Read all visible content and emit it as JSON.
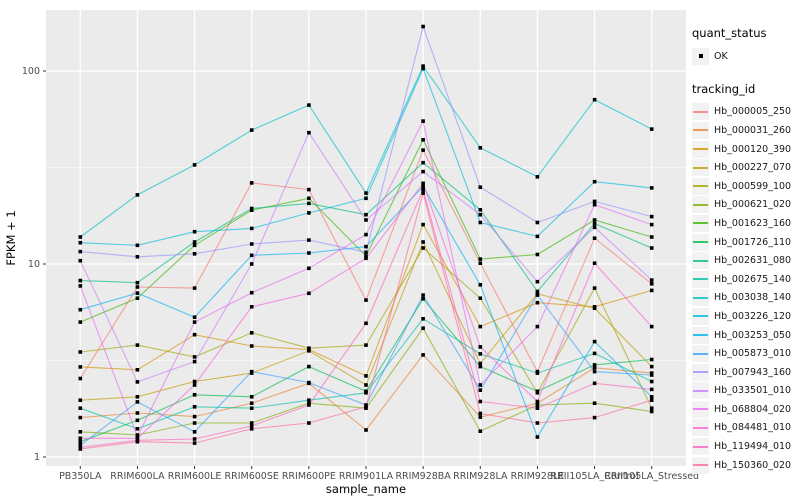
{
  "chart": {
    "ylabel": "FPKM + 1",
    "xlabel": "sample_name",
    "legend": {
      "quant_status_title": "quant_status",
      "quant_status_ok_label": "OK",
      "tracking_title": "tracking_id"
    }
  },
  "chart_data": {
    "type": "line",
    "title": "",
    "xlabel": "sample_name",
    "ylabel": "FPKM + 1",
    "y_scale": "log10",
    "y_ticks": [
      1,
      10,
      100
    ],
    "y_minor_gridlines": [
      3.162,
      31.623
    ],
    "ylim": [
      0.9,
      210
    ],
    "grid": true,
    "legend_position": "right",
    "point_marker": {
      "shape": "small-black-square",
      "color": "#000000",
      "quant_status": "OK"
    },
    "categories": [
      "PB350LA",
      "RRIM600LA",
      "RRIM600LE",
      "RRIM600SE",
      "RRIM600PE",
      "RRIM901LA",
      "RRIM928BA",
      "RRIM928LA",
      "RRIM928LE",
      "RRII105LA_Control",
      "RRII105LA_Stressed"
    ],
    "series": [
      {
        "name": "Hb_000005_250",
        "color": "#F8766D",
        "values": [
          2.55,
          7.6,
          7.5,
          26.3,
          24.3,
          6.5,
          38.9,
          10.1,
          2.77,
          13.6,
          7.9
        ]
      },
      {
        "name": "Hb_000031_260",
        "color": "#EA8331",
        "values": [
          1.6,
          1.69,
          1.62,
          1.9,
          2.41,
          1.38,
          3.38,
          1.61,
          1.9,
          2.9,
          2.72
        ]
      },
      {
        "name": "Hb_000120_390",
        "color": "#D89000",
        "values": [
          2.93,
          2.83,
          4.3,
          3.76,
          3.6,
          2.63,
          16,
          4.74,
          6.3,
          6.0,
          7.3
        ]
      },
      {
        "name": "Hb_000227_070",
        "color": "#C09B00",
        "values": [
          1.97,
          2.05,
          2.46,
          2.72,
          3.55,
          2.36,
          13,
          3.05,
          7.0,
          5.9,
          2.94
        ]
      },
      {
        "name": "Hb_000599_100",
        "color": "#A3A500",
        "values": [
          3.5,
          3.8,
          3.3,
          4.4,
          3.66,
          3.8,
          12.1,
          6.65,
          2.15,
          7.5,
          1.79
        ]
      },
      {
        "name": "Hb_000621_020",
        "color": "#7CAE00",
        "values": [
          1.35,
          1.3,
          1.5,
          1.5,
          1.9,
          1.79,
          4.65,
          1.36,
          1.86,
          1.9,
          1.72
        ]
      },
      {
        "name": "Hb_001623_160",
        "color": "#39B600",
        "values": [
          5.0,
          6.65,
          12.5,
          19.0,
          21.9,
          11.0,
          44,
          10.6,
          11.2,
          16.9,
          13.8
        ]
      },
      {
        "name": "Hb_001726_110",
        "color": "#00BB4E",
        "values": [
          1.2,
          1.55,
          2.1,
          2.05,
          2.94,
          2.19,
          6.6,
          2.94,
          2.19,
          3.0,
          3.2
        ]
      },
      {
        "name": "Hb_002631_080",
        "color": "#00BF7D",
        "values": [
          8.2,
          8.0,
          13.0,
          19.4,
          20.6,
          18.0,
          33.5,
          19.1,
          7.2,
          16.2,
          12.1
        ]
      },
      {
        "name": "Hb_002675_140",
        "color": "#00C1A3",
        "values": [
          1.79,
          1.4,
          1.82,
          1.79,
          1.97,
          2.15,
          5.2,
          3.42,
          2.72,
          3.44,
          2.46
        ]
      },
      {
        "name": "Hb_003038_140",
        "color": "#00BFC4",
        "values": [
          13.8,
          22.8,
          32.6,
          49.4,
          66.6,
          23.3,
          106,
          40,
          28.3,
          71,
          50
        ]
      },
      {
        "name": "Hb_003226_120",
        "color": "#00BAE0",
        "values": [
          12.9,
          12.5,
          14.7,
          15.3,
          18.4,
          21.9,
          103,
          16.4,
          13.9,
          26.7,
          24.8
        ]
      },
      {
        "name": "Hb_003253_050",
        "color": "#00B0F6",
        "values": [
          5.8,
          7.07,
          5.3,
          11.1,
          11.4,
          12.3,
          25.2,
          7.8,
          1.27,
          3.96,
          2.05
        ]
      },
      {
        "name": "Hb_005873_010",
        "color": "#35A2FF",
        "values": [
          1.15,
          1.93,
          1.35,
          2.77,
          2.43,
          1.86,
          6.9,
          2.22,
          6.9,
          2.77,
          2.66
        ]
      },
      {
        "name": "Hb_007943_160",
        "color": "#9590FF",
        "values": [
          11.6,
          10.9,
          11.3,
          12.7,
          13.3,
          11.5,
          170,
          25,
          16.4,
          21.1,
          17.6
        ]
      },
      {
        "name": "Hb_033501_010",
        "color": "#C77CFF",
        "values": [
          10.4,
          2.45,
          3.12,
          10.0,
          47.9,
          16.9,
          30.1,
          18.0,
          8.1,
          15.5,
          8.25
        ]
      },
      {
        "name": "Hb_068804_020",
        "color": "#E76BF3",
        "values": [
          7.7,
          1.28,
          5.0,
          7.1,
          9.5,
          14.2,
          55,
          2.36,
          4.74,
          20.3,
          16.0
        ]
      },
      {
        "name": "Hb_084481_010",
        "color": "#FA62DB",
        "values": [
          1.25,
          1.25,
          2.36,
          6.0,
          7.05,
          10.7,
          26.2,
          3.72,
          1.94,
          10.1,
          4.74
        ]
      },
      {
        "name": "Hb_119494_010",
        "color": "#FF62BC",
        "values": [
          1.12,
          1.22,
          1.24,
          1.45,
          1.86,
          4.93,
          24.3,
          1.94,
          1.79,
          2.41,
          2.24
        ]
      },
      {
        "name": "Hb_150360_020",
        "color": "#FF6A98",
        "values": [
          1.1,
          1.2,
          1.18,
          1.4,
          1.5,
          1.82,
          23.3,
          1.68,
          1.5,
          1.6,
          1.97
        ]
      }
    ],
    "panel_background": "#EBEBEB",
    "gridline_color": "#FFFFFF",
    "tick_label_color": "#4D4D4D"
  }
}
